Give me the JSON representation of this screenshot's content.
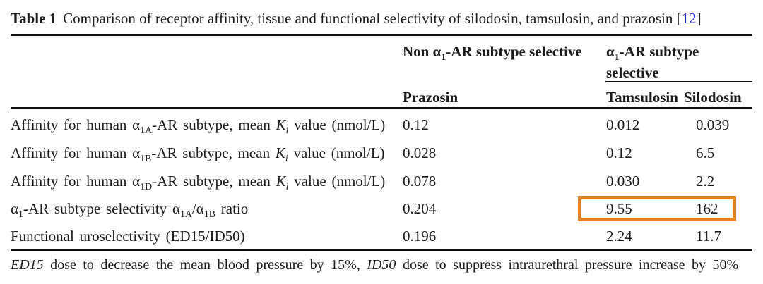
{
  "title": {
    "label": "Table 1",
    "text": "Comparison of receptor affinity, tissue and functional selectivity of silodosin, tamsulosin, and prazosin",
    "bracket_open": "[",
    "ref": "12",
    "bracket_close": "]"
  },
  "header": {
    "spanner_non_selective": [
      {
        "t": "Non α"
      },
      {
        "t": "1",
        "s": "sub"
      },
      {
        "t": "-AR subtype selective"
      }
    ],
    "spanner_selective": [
      {
        "t": "α"
      },
      {
        "t": "1",
        "s": "sub"
      },
      {
        "t": "-AR subtype selective"
      }
    ],
    "col_prazosin": "Prazosin",
    "col_tamsulosin": "Tamsulosin",
    "col_silodosin": "Silodosin"
  },
  "rows": [
    {
      "label": [
        {
          "t": "Affinity for human α"
        },
        {
          "t": "1A",
          "s": "sub"
        },
        {
          "t": "-AR subtype, mean "
        },
        {
          "t": "K",
          "s": "i"
        },
        {
          "t": "i",
          "s": "isub"
        },
        {
          "t": " value (nmol/L)"
        }
      ],
      "prazosin": "0.12",
      "tamsulosin": "0.012",
      "silodosin": "0.039"
    },
    {
      "label": [
        {
          "t": "Affinity for human α"
        },
        {
          "t": "1B",
          "s": "sub"
        },
        {
          "t": "-AR subtype, mean "
        },
        {
          "t": "K",
          "s": "i"
        },
        {
          "t": "i",
          "s": "isub"
        },
        {
          "t": " value (nmol/L)"
        }
      ],
      "prazosin": "0.028",
      "tamsulosin": "0.12",
      "silodosin": "6.5"
    },
    {
      "label": [
        {
          "t": "Affinity for human α"
        },
        {
          "t": "1D",
          "s": "sub"
        },
        {
          "t": "-AR subtype, mean "
        },
        {
          "t": "K",
          "s": "i"
        },
        {
          "t": "i",
          "s": "isub"
        },
        {
          "t": " value (nmol/L)"
        }
      ],
      "prazosin": "0.078",
      "tamsulosin": "0.030",
      "silodosin": "2.2"
    },
    {
      "label": [
        {
          "t": "α"
        },
        {
          "t": "1",
          "s": "sub"
        },
        {
          "t": "-AR subtype selectivity α"
        },
        {
          "t": "1A",
          "s": "sub"
        },
        {
          "t": "/α"
        },
        {
          "t": "1B",
          "s": "sub"
        },
        {
          "t": " ratio"
        }
      ],
      "prazosin": "0.204",
      "tamsulosin": "9.55",
      "silodosin": "162",
      "highlighted": true
    },
    {
      "label": [
        {
          "t": "Functional uroselectivity (ED15/ID50)"
        }
      ],
      "prazosin": "0.196",
      "tamsulosin": "2.24",
      "silodosin": "11.7"
    }
  ],
  "footnote": [
    {
      "t": "ED15",
      "s": "i"
    },
    {
      "t": " dose to decrease the mean blood pressure by 15%, "
    },
    {
      "t": "ID50",
      "s": "i"
    },
    {
      "t": " dose to suppress intraurethral pressure increase by 50%"
    }
  ],
  "colors": {
    "highlight_border": "#e87f23",
    "link": "#2424cf",
    "text": "#1c1c1c",
    "rule": "#0e0e0e"
  }
}
